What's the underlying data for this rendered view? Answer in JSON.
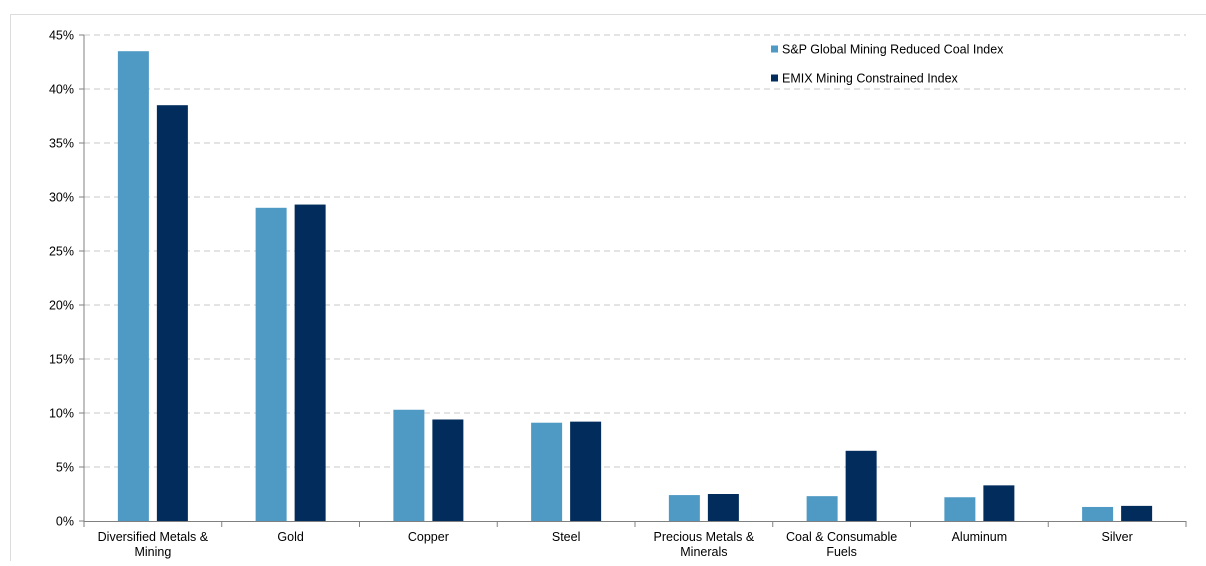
{
  "chart_data": {
    "type": "bar",
    "title": "",
    "xlabel": "",
    "ylabel": "",
    "categories": [
      [
        "Diversified Metals &",
        "Mining"
      ],
      [
        "Gold"
      ],
      [
        "Copper"
      ],
      [
        "Steel"
      ],
      [
        "Precious Metals &",
        "Minerals"
      ],
      [
        "Coal & Consumable",
        "Fuels"
      ],
      [
        "Aluminum"
      ],
      [
        "Silver"
      ]
    ],
    "series": [
      {
        "name": "S&P Global Mining Reduced Coal Index",
        "color": "#4f9ac4",
        "values": [
          43.5,
          29.0,
          10.3,
          9.1,
          2.4,
          2.3,
          2.2,
          1.3
        ]
      },
      {
        "name": "EMIX Mining Constrained Index",
        "color": "#012c5b",
        "values": [
          38.5,
          29.3,
          9.4,
          9.2,
          2.5,
          6.5,
          3.3,
          1.4
        ]
      }
    ],
    "ylim": [
      0,
      45
    ],
    "yticks": [
      0,
      5,
      10,
      15,
      20,
      25,
      30,
      35,
      40,
      45
    ],
    "ytick_labels": [
      "0%",
      "5%",
      "10%",
      "15%",
      "20%",
      "25%",
      "30%",
      "35%",
      "40%",
      "45%"
    ],
    "grid": true,
    "legend_position": "top-right"
  }
}
